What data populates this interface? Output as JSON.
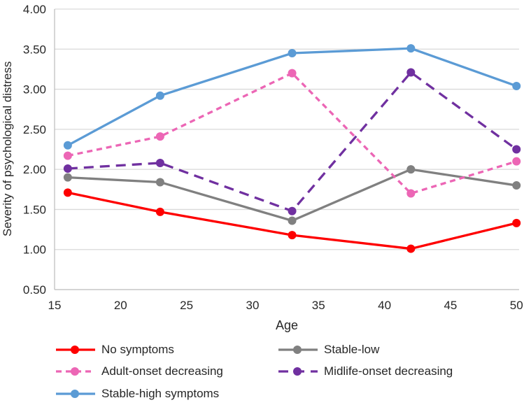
{
  "figure": {
    "background": "#ffffff",
    "text_color": "#262626",
    "gridline_color": "#d9d9d9",
    "axis_line_color": "#bfbfbf"
  },
  "chart_data": {
    "type": "line",
    "title": "",
    "xlabel": "Age",
    "ylabel": "Severity of psychological distress",
    "x": [
      16,
      23,
      33,
      42,
      50
    ],
    "x_ticks": [
      15,
      20,
      25,
      30,
      35,
      40,
      45,
      50
    ],
    "y_ticks": [
      "4.00",
      "3.50",
      "3.00",
      "2.50",
      "2.00",
      "1.50",
      "1.00",
      "0.50"
    ],
    "xlim": [
      15,
      50.2
    ],
    "ylim": [
      0.5,
      4.0
    ],
    "grid": "horizontal",
    "legend_position": "bottom",
    "series": [
      {
        "name": "No symptoms",
        "color": "#fe0000",
        "dash": "solid",
        "values": [
          1.71,
          1.47,
          1.18,
          1.01,
          1.33
        ]
      },
      {
        "name": "Stable-low",
        "color": "#808080",
        "dash": "solid",
        "values": [
          1.9,
          1.84,
          1.36,
          2.0,
          1.8
        ]
      },
      {
        "name": "Adult-onset decreasing",
        "color": "#ec66b5",
        "dash": "dashed",
        "values": [
          2.17,
          2.41,
          3.2,
          1.7,
          2.1
        ]
      },
      {
        "name": "Midlife-onset decreasing",
        "color": "#7030a0",
        "dash": "long-dash",
        "values": [
          2.01,
          2.08,
          1.48,
          3.21,
          2.25
        ]
      },
      {
        "name": "Stable-high symptoms",
        "color": "#5b9bd5",
        "dash": "solid",
        "values": [
          2.3,
          2.92,
          3.45,
          3.51,
          3.04
        ]
      }
    ]
  }
}
